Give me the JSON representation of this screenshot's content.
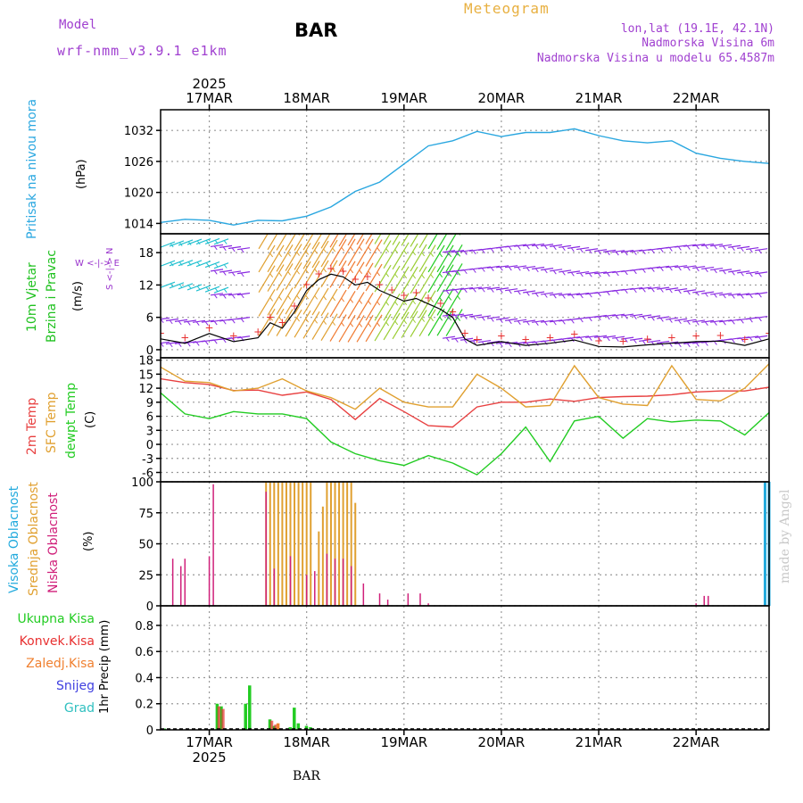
{
  "header": {
    "model_label": "Model",
    "model_name": "wrf-nmm_v3.9.1 e1km",
    "station": "BAR",
    "product": "Meteogram",
    "coords": "lon,lat (19.1E, 42.1N)",
    "elevation": "Nadmorska Visina 6m",
    "model_elevation": "Nadmorska Visina u modelu 65.4587m",
    "footer_station": "BAR",
    "watermark": "made by Angel"
  },
  "colors": {
    "pressure": "#2aa7e0",
    "wind_label": "#1fc11f",
    "temp2m": "#e84040",
    "sfc_temp": "#e0a030",
    "dewpt": "#22cc22",
    "cloud_high": "#22aadd",
    "cloud_mid": "#e0a030",
    "cloud_low": "#d0207a",
    "precip_total": "#22cc22",
    "precip_conv": "#e83030",
    "precip_frz": "#f08030",
    "snow": "#4040e0",
    "graupel": "#30c0c0",
    "compass": "#9933cc",
    "header_purple": "#a040d0",
    "header_orange": "#e8b040",
    "barb_purple": "#8a2be2"
  },
  "time_axis": {
    "year": "2025",
    "days": [
      "17MAR",
      "18MAR",
      "19MAR",
      "20MAR",
      "21MAR",
      "22MAR"
    ],
    "start_hours_before_17mar": 12,
    "total_hours": 150
  },
  "panels": {
    "pressure": {
      "label": "Pritisak na nivou mora",
      "unit": "(hPa)",
      "ticks": [
        "1014",
        "1020",
        "1026",
        "1032"
      ]
    },
    "wind": {
      "label1": "10m Vjetar",
      "label2": "Brzina i Pravac",
      "unit": "(m/s)",
      "ticks": [
        "0",
        "6",
        "12",
        "18"
      ],
      "compass": {
        "n": "N",
        "s": "S",
        "e": "E",
        "w": "W"
      }
    },
    "temp": {
      "label1": "2m Temp",
      "label2": "SFC Temp",
      "label3": "dewpt Temp",
      "unit": "(C)",
      "ticks": [
        "-6",
        "-3",
        "0",
        "3",
        "6",
        "9",
        "12",
        "15",
        "18"
      ]
    },
    "cloud": {
      "label1": "Visoka Oblacnost",
      "label2": "Srednja Oblacnost",
      "label3": "Niska Oblacnost",
      "unit": "(%)",
      "ticks": [
        "0",
        "25",
        "50",
        "75",
        "100"
      ]
    },
    "precip": {
      "legend": [
        "Ukupna Kisa",
        "Konvek.Kisa",
        "Zaledj.Kisa",
        "Snijeg",
        "Grad"
      ],
      "unit": "1hr Precip (mm)",
      "ticks": [
        "0",
        "0.2",
        "0.4",
        "0.6",
        "0.8"
      ]
    }
  },
  "chart_data": [
    {
      "type": "line",
      "title": "Pritisak na nivou mora",
      "ylabel": "(hPa)",
      "ylim": [
        1012,
        1036
      ],
      "series": [
        {
          "name": "Pritisak na nivou mora",
          "x_hours": [
            0,
            6,
            12,
            18,
            24,
            30,
            36,
            42,
            48,
            54,
            60,
            66,
            72,
            78,
            84,
            90,
            96,
            102,
            108,
            114,
            120,
            126,
            132,
            138,
            144,
            150
          ],
          "values": [
            1014.2,
            1014.8,
            1014.6,
            1013.7,
            1014.6,
            1014.5,
            1015.4,
            1017.2,
            1020.2,
            1022.0,
            1025.5,
            1029.0,
            1030.0,
            1031.8,
            1030.8,
            1031.6,
            1031.6,
            1032.3,
            1031.0,
            1030.0,
            1029.6,
            1030.0,
            1027.6,
            1026.6,
            1026.0,
            1025.6
          ]
        }
      ]
    },
    {
      "type": "line",
      "title": "10m Vjetar Brzina i Pravac",
      "ylabel": "(m/s)",
      "ylim": [
        -1.5,
        21.5
      ],
      "series": [
        {
          "name": "10m Vjetar",
          "x_hours": [
            0,
            6,
            12,
            18,
            24,
            27,
            30,
            33,
            36,
            39,
            42,
            45,
            48,
            51,
            54,
            57,
            60,
            63,
            66,
            69,
            72,
            75,
            78,
            84,
            90,
            96,
            102,
            108,
            114,
            120,
            126,
            132,
            138,
            144,
            150
          ],
          "values": [
            2,
            1.2,
            3,
            1.5,
            2.2,
            5,
            4,
            7,
            11,
            13,
            14,
            13.5,
            12,
            12.5,
            11,
            10,
            9,
            9.5,
            8.5,
            7.5,
            6,
            2,
            0.8,
            1.5,
            0.8,
            1.2,
            1.8,
            0.6,
            0.5,
            0.9,
            1.2,
            1.5,
            1.6,
            0.8,
            2
          ]
        }
      ]
    },
    {
      "type": "line",
      "title": "2m Temp / SFC Temp / dewpt Temp",
      "ylabel": "(C)",
      "ylim": [
        -8,
        18.5
      ],
      "series": [
        {
          "name": "2m Temp",
          "x_hours": [
            0,
            6,
            12,
            18,
            24,
            30,
            36,
            42,
            48,
            54,
            60,
            66,
            72,
            78,
            84,
            90,
            96,
            102,
            108,
            114,
            120,
            126,
            132,
            138,
            144,
            150
          ],
          "values": [
            14,
            13.2,
            12.8,
            11.5,
            11.6,
            10.5,
            11.2,
            9.6,
            5.3,
            9.8,
            7,
            4,
            3.7,
            8,
            9,
            9,
            9.7,
            9.2,
            10,
            10.2,
            10.3,
            10.6,
            11.2,
            11.4,
            11.4,
            12.2
          ]
        },
        {
          "name": "SFC Temp",
          "x_hours": [
            0,
            6,
            12,
            18,
            24,
            30,
            36,
            42,
            48,
            54,
            60,
            66,
            72,
            78,
            84,
            90,
            96,
            102,
            108,
            114,
            120,
            126,
            132,
            138,
            144,
            150
          ],
          "values": [
            16.5,
            13.5,
            13.2,
            11.4,
            12,
            14,
            11.4,
            10,
            7.5,
            12,
            9,
            8,
            8,
            15,
            12,
            8,
            8.3,
            16.8,
            10,
            8.6,
            8.3,
            16.8,
            9.6,
            9.3,
            12,
            17.2
          ]
        },
        {
          "name": "dewpt Temp",
          "x_hours": [
            0,
            6,
            12,
            18,
            24,
            30,
            36,
            42,
            48,
            54,
            60,
            66,
            72,
            78,
            84,
            90,
            96,
            102,
            108,
            114,
            120,
            126,
            132,
            138,
            144,
            150
          ],
          "values": [
            11,
            6.5,
            5.5,
            7,
            6.5,
            6.5,
            5.5,
            0.5,
            -2,
            -3.5,
            -4.5,
            -2.4,
            -4,
            -6.5,
            -2,
            3.7,
            -3.7,
            5,
            6,
            1.3,
            5.5,
            4.8,
            5.2,
            5,
            2,
            6.8
          ]
        }
      ]
    },
    {
      "type": "bar",
      "title": "Oblacnost",
      "ylabel": "(%)",
      "ylim": [
        0,
        100
      ],
      "series": [
        {
          "name": "Visoka Oblacnost",
          "x_hours": [
            8,
            14,
            24,
            60,
            75,
            100,
            120,
            149,
            150
          ],
          "values": [
            0,
            0,
            0,
            0,
            0,
            0,
            0,
            100,
            100
          ]
        },
        {
          "name": "Srednja Oblacnost",
          "x_hours": [
            26,
            27,
            28,
            29,
            30,
            31,
            32,
            33,
            34,
            35,
            36,
            37,
            38,
            39,
            40,
            41,
            42,
            43,
            44,
            45,
            46,
            47,
            48,
            49
          ],
          "values": [
            100,
            100,
            100,
            100,
            100,
            100,
            100,
            100,
            100,
            100,
            100,
            100,
            0,
            60,
            80,
            100,
            100,
            100,
            100,
            100,
            100,
            100,
            83,
            0
          ]
        },
        {
          "name": "Niska Oblacnost",
          "x_hours": [
            3,
            5,
            6,
            12,
            13,
            26,
            28,
            32,
            36,
            38,
            41,
            43,
            45,
            47,
            50,
            54,
            56,
            61,
            64,
            66,
            132,
            134,
            135
          ],
          "values": [
            38,
            32,
            38,
            40,
            98,
            92,
            30,
            40,
            25,
            28,
            42,
            38,
            38,
            32,
            18,
            10,
            5,
            10,
            10,
            2,
            2,
            8,
            8
          ]
        }
      ]
    },
    {
      "type": "bar",
      "title": "1hr Precip",
      "ylabel": "1hr Precip (mm)",
      "ylim": [
        0,
        0.95
      ],
      "series": [
        {
          "name": "Ukupna Kisa",
          "x_hours": [
            1,
            14,
            15,
            21,
            22,
            27,
            28,
            32,
            33,
            34,
            36,
            37
          ],
          "values": [
            0.01,
            0.2,
            0.18,
            0.2,
            0.34,
            0.08,
            0.03,
            0.02,
            0.17,
            0.05,
            0.03,
            0.02
          ]
        },
        {
          "name": "Konvek.Kisa",
          "x_hours": [
            14,
            15,
            27,
            28
          ],
          "values": [
            0.18,
            0.16,
            0.07,
            0.04
          ]
        },
        {
          "name": "Zaledj.Kisa",
          "x_hours": [
            29
          ],
          "values": [
            0.05
          ]
        }
      ]
    }
  ]
}
